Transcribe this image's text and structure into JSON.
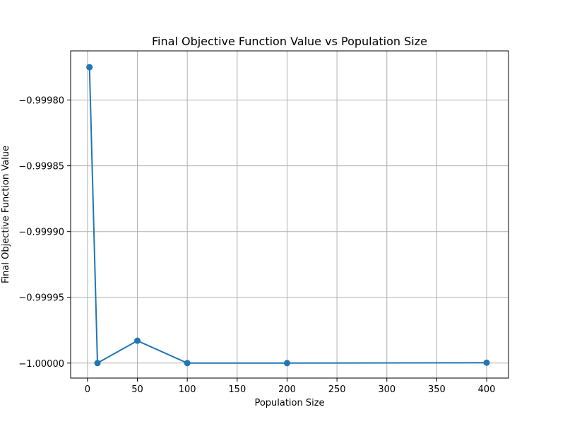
{
  "chart_data": {
    "type": "line",
    "title": "Final Objective Function Value vs Population Size",
    "xlabel": "Population Size",
    "ylabel": "Final Objective Function Value",
    "xlim": [
      -16.9,
      421.9
    ],
    "ylim": [
      -1.0000114,
      -0.9997626
    ],
    "x_ticks": [
      0,
      50,
      100,
      150,
      200,
      250,
      300,
      350,
      400
    ],
    "x_tick_labels": [
      "0",
      "50",
      "100",
      "150",
      "200",
      "250",
      "300",
      "350",
      "400"
    ],
    "y_ticks": [
      -1.0,
      -0.99995,
      -0.9999,
      -0.99985,
      -0.9998
    ],
    "y_tick_labels": [
      "−1.00000",
      "−0.99995",
      "−0.99990",
      "−0.99985",
      "−0.99980"
    ],
    "grid": true,
    "series": [
      {
        "color": "#1f77b4",
        "marker": "circle",
        "x": [
          2,
          10,
          50,
          100,
          200,
          400
        ],
        "y": [
          -0.999775,
          -1.0,
          -0.999983,
          -1.0,
          -1.0,
          -0.9999997
        ]
      }
    ]
  }
}
